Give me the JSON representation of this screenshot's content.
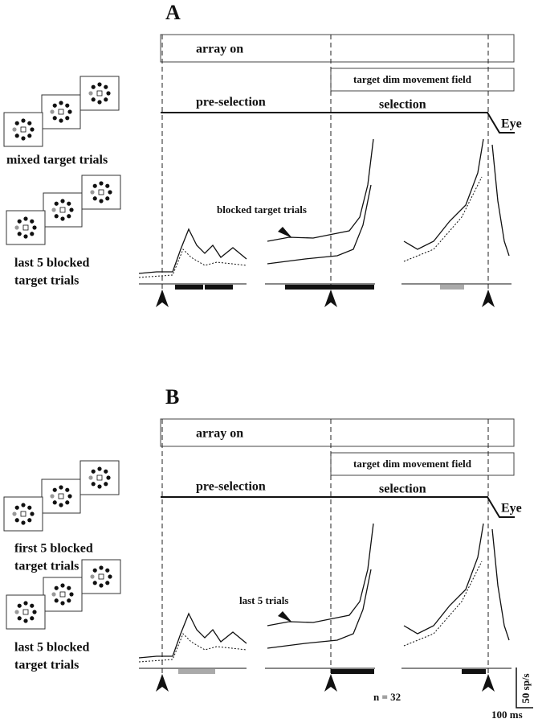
{
  "panels": [
    {
      "label": "A",
      "array_on": "array on",
      "target_dim": "target dim movement field",
      "pre_selection": "pre-selection",
      "selection": "selection",
      "eye": "Eye",
      "top_condition": [
        "mixed target trials"
      ],
      "bottom_condition": [
        "last 5 blocked",
        "target trials"
      ],
      "annotation": "blocked target trials"
    },
    {
      "label": "B",
      "array_on": "array on",
      "target_dim": "target dim movement field",
      "pre_selection": "pre-selection",
      "selection": "selection",
      "eye": "Eye",
      "top_condition": [
        "first 5 blocked",
        "target trials"
      ],
      "bottom_condition": [
        "last 5  blocked",
        "target trials"
      ],
      "annotation": "last  5 trials",
      "n": "n = 32"
    }
  ],
  "scale": {
    "vertical": "50 sp/s",
    "horizontal": "100 ms"
  }
}
